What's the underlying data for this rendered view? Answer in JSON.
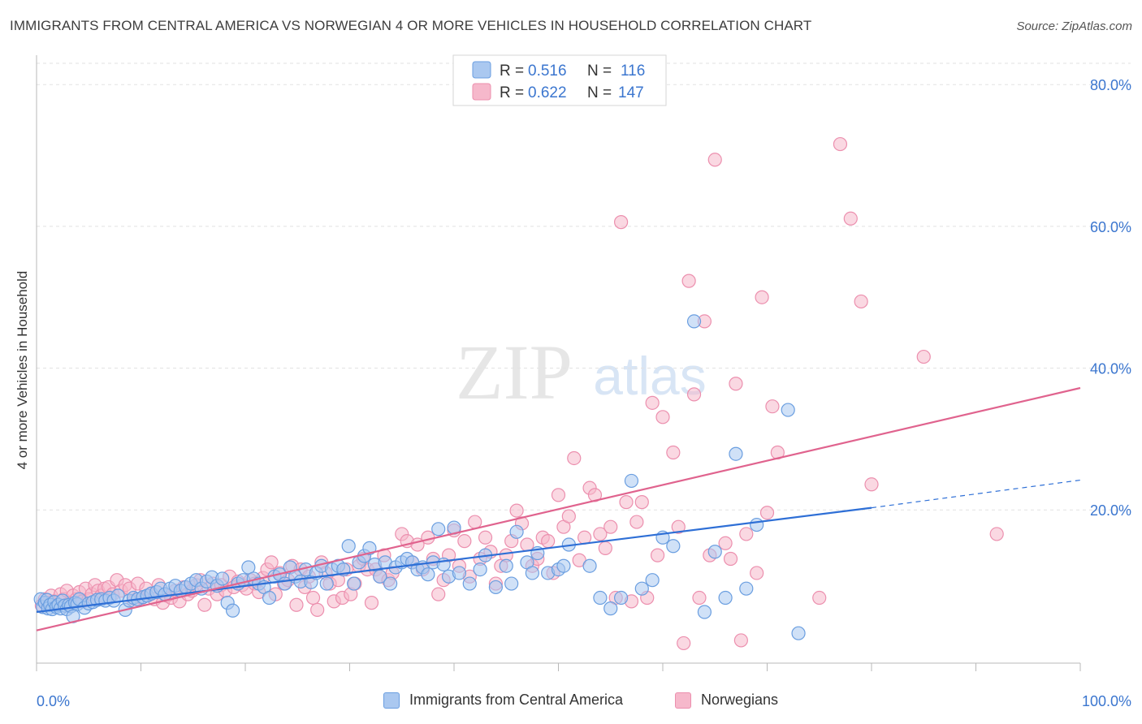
{
  "title": "IMMIGRANTS FROM CENTRAL AMERICA VS NORWEGIAN 4 OR MORE VEHICLES IN HOUSEHOLD CORRELATION CHART",
  "source": "Source: ZipAtlas.com",
  "watermark": {
    "zip": "ZIP",
    "atlas": "atlas"
  },
  "colors": {
    "blue_fill": "#aac8f0",
    "blue_stroke": "#6a9ee0",
    "blue_line": "#2e6fd6",
    "pink_fill": "#f6b8cb",
    "pink_stroke": "#ec8fae",
    "pink_line": "#e0638e",
    "tick_label": "#3b76cf",
    "grid": "#e2e2e2"
  },
  "stats_legend": [
    {
      "r_label": "R =",
      "r_value": "0.516",
      "n_label": "N =",
      "n_value": "116"
    },
    {
      "r_label": "R =",
      "r_value": "0.622",
      "n_label": "N =",
      "n_value": "147"
    }
  ],
  "chart_data": {
    "type": "scatter",
    "xlabel": "",
    "ylabel": "4 or more Vehicles in Household",
    "xlim": [
      0,
      100
    ],
    "ylim": [
      -1.5,
      83
    ],
    "x_tick_labels": [
      "0.0%",
      "100.0%"
    ],
    "y_ticks": [
      20,
      40,
      60,
      80
    ],
    "y_tick_labels": [
      "20.0%",
      "40.0%",
      "60.0%",
      "80.0%"
    ],
    "grid": "horizontal dashed",
    "legend_position": "bottom",
    "series": [
      {
        "name": "Immigrants from Central America",
        "color": "#aac8f0",
        "r": 0.516,
        "n": 116,
        "trend": {
          "x": [
            0,
            80
          ],
          "y": [
            5.6,
            20.3
          ],
          "dashed_extension": {
            "x": [
              80,
              100
            ],
            "y": [
              20.3,
              24.2
            ]
          }
        },
        "points": [
          [
            0.4,
            7.4
          ],
          [
            0.6,
            6.3
          ],
          [
            0.8,
            6.9
          ],
          [
            1.0,
            7.3
          ],
          [
            1.1,
            6.1
          ],
          [
            1.3,
            6.6
          ],
          [
            1.5,
            6.0
          ],
          [
            1.7,
            7.0
          ],
          [
            1.9,
            6.3
          ],
          [
            2.1,
            6.6
          ],
          [
            2.3,
            6.1
          ],
          [
            2.5,
            7.2
          ],
          [
            2.7,
            6.5
          ],
          [
            2.9,
            6.0
          ],
          [
            3.1,
            6.6
          ],
          [
            3.3,
            6.4
          ],
          [
            3.5,
            5.0
          ],
          [
            3.7,
            6.9
          ],
          [
            3.9,
            6.7
          ],
          [
            4.1,
            7.4
          ],
          [
            4.6,
            6.2
          ],
          [
            5.0,
            6.8
          ],
          [
            5.4,
            7.0
          ],
          [
            5.8,
            7.3
          ],
          [
            6.2,
            7.4
          ],
          [
            6.6,
            7.2
          ],
          [
            7.0,
            7.6
          ],
          [
            7.4,
            7.2
          ],
          [
            7.8,
            7.9
          ],
          [
            8.5,
            5.9
          ],
          [
            8.9,
            7.2
          ],
          [
            9.3,
            7.6
          ],
          [
            9.7,
            7.4
          ],
          [
            10.2,
            7.7
          ],
          [
            10.6,
            7.9
          ],
          [
            11.0,
            8.2
          ],
          [
            11.5,
            8.4
          ],
          [
            11.9,
            8.9
          ],
          [
            12.3,
            8.1
          ],
          [
            12.8,
            8.9
          ],
          [
            13.3,
            9.3
          ],
          [
            13.8,
            8.6
          ],
          [
            14.3,
            9.1
          ],
          [
            14.8,
            9.6
          ],
          [
            15.3,
            10.1
          ],
          [
            15.8,
            8.9
          ],
          [
            16.3,
            9.9
          ],
          [
            16.8,
            10.5
          ],
          [
            17.3,
            9.3
          ],
          [
            17.8,
            10.3
          ],
          [
            18.3,
            6.9
          ],
          [
            18.8,
            5.8
          ],
          [
            19.3,
            9.6
          ],
          [
            19.8,
            10.1
          ],
          [
            20.3,
            11.9
          ],
          [
            20.8,
            10.3
          ],
          [
            21.3,
            9.6
          ],
          [
            21.8,
            9.1
          ],
          [
            22.3,
            7.6
          ],
          [
            22.8,
            10.6
          ],
          [
            23.3,
            10.9
          ],
          [
            23.8,
            9.6
          ],
          [
            24.3,
            11.9
          ],
          [
            24.8,
            10.6
          ],
          [
            25.3,
            9.9
          ],
          [
            25.8,
            11.6
          ],
          [
            26.3,
            9.8
          ],
          [
            26.8,
            11.1
          ],
          [
            27.3,
            12.1
          ],
          [
            27.8,
            9.6
          ],
          [
            28.3,
            11.6
          ],
          [
            28.9,
            12.1
          ],
          [
            29.4,
            11.6
          ],
          [
            29.9,
            14.9
          ],
          [
            30.4,
            9.6
          ],
          [
            30.9,
            12.6
          ],
          [
            31.4,
            13.5
          ],
          [
            31.9,
            14.6
          ],
          [
            32.4,
            12.3
          ],
          [
            32.9,
            10.6
          ],
          [
            33.4,
            12.6
          ],
          [
            33.9,
            9.6
          ],
          [
            34.4,
            11.9
          ],
          [
            35.0,
            12.6
          ],
          [
            35.5,
            13.1
          ],
          [
            36.0,
            12.6
          ],
          [
            36.5,
            11.6
          ],
          [
            37.0,
            11.9
          ],
          [
            37.5,
            10.9
          ],
          [
            38.0,
            12.6
          ],
          [
            38.5,
            17.3
          ],
          [
            39.0,
            12.3
          ],
          [
            39.5,
            10.6
          ],
          [
            40.0,
            17.5
          ],
          [
            40.5,
            11.1
          ],
          [
            41.5,
            9.6
          ],
          [
            42.5,
            11.6
          ],
          [
            43.0,
            13.6
          ],
          [
            44.0,
            9.1
          ],
          [
            45.0,
            12.1
          ],
          [
            45.5,
            9.6
          ],
          [
            46.0,
            16.9
          ],
          [
            47.0,
            12.6
          ],
          [
            47.5,
            11.1
          ],
          [
            48.0,
            13.9
          ],
          [
            49.0,
            11.1
          ],
          [
            50.0,
            11.6
          ],
          [
            50.5,
            12.1
          ],
          [
            51.0,
            15.1
          ],
          [
            53.0,
            12.1
          ],
          [
            54.0,
            7.6
          ],
          [
            55.0,
            6.1
          ],
          [
            56.0,
            7.6
          ],
          [
            57.0,
            24.1
          ],
          [
            58.0,
            8.9
          ],
          [
            59.0,
            10.1
          ],
          [
            60.0,
            16.1
          ],
          [
            61.0,
            14.9
          ],
          [
            63.0,
            46.6
          ],
          [
            64.0,
            5.6
          ],
          [
            65.0,
            14.1
          ],
          [
            66.0,
            7.6
          ],
          [
            67.0,
            27.9
          ],
          [
            68.0,
            8.9
          ],
          [
            69.0,
            17.9
          ],
          [
            72.0,
            34.1
          ],
          [
            73.0,
            2.6
          ]
        ]
      },
      {
        "name": "Norwegians",
        "color": "#f6b8cb",
        "r": 0.622,
        "n": 147,
        "trend": {
          "x": [
            0,
            100
          ],
          "y": [
            3.0,
            37.2
          ]
        },
        "points": [
          [
            0.5,
            6.5
          ],
          [
            0.8,
            7.4
          ],
          [
            1.1,
            6.9
          ],
          [
            1.4,
            7.9
          ],
          [
            1.7,
            7.1
          ],
          [
            2.0,
            6.6
          ],
          [
            2.3,
            8.1
          ],
          [
            2.6,
            7.4
          ],
          [
            2.9,
            8.6
          ],
          [
            3.2,
            6.9
          ],
          [
            3.5,
            7.9
          ],
          [
            3.8,
            7.4
          ],
          [
            4.1,
            8.4
          ],
          [
            4.4,
            7.1
          ],
          [
            4.7,
            8.9
          ],
          [
            5.0,
            7.4
          ],
          [
            5.3,
            8.1
          ],
          [
            5.6,
            9.4
          ],
          [
            5.9,
            8.6
          ],
          [
            6.2,
            7.9
          ],
          [
            6.5,
            8.9
          ],
          [
            6.9,
            9.1
          ],
          [
            7.3,
            8.1
          ],
          [
            7.7,
            10.1
          ],
          [
            8.1,
            8.6
          ],
          [
            8.5,
            9.4
          ],
          [
            8.9,
            8.9
          ],
          [
            9.3,
            7.1
          ],
          [
            9.7,
            9.6
          ],
          [
            10.1,
            7.6
          ],
          [
            10.5,
            8.9
          ],
          [
            10.9,
            8.1
          ],
          [
            11.3,
            7.4
          ],
          [
            11.7,
            9.4
          ],
          [
            12.1,
            6.9
          ],
          [
            12.5,
            7.9
          ],
          [
            12.9,
            7.6
          ],
          [
            13.3,
            8.6
          ],
          [
            13.7,
            7.1
          ],
          [
            14.1,
            9.1
          ],
          [
            14.5,
            8.1
          ],
          [
            14.9,
            8.6
          ],
          [
            15.3,
            9.4
          ],
          [
            15.7,
            10.1
          ],
          [
            16.1,
            6.6
          ],
          [
            16.5,
            8.9
          ],
          [
            16.9,
            9.6
          ],
          [
            17.3,
            8.1
          ],
          [
            17.7,
            9.4
          ],
          [
            18.1,
            8.6
          ],
          [
            18.5,
            10.6
          ],
          [
            18.9,
            9.1
          ],
          [
            19.3,
            9.9
          ],
          [
            19.7,
            9.4
          ],
          [
            20.1,
            8.9
          ],
          [
            20.5,
            10.1
          ],
          [
            20.9,
            9.6
          ],
          [
            21.3,
            8.4
          ],
          [
            21.7,
            10.4
          ],
          [
            22.1,
            11.6
          ],
          [
            22.5,
            12.6
          ],
          [
            22.9,
            8.1
          ],
          [
            23.3,
            11.1
          ],
          [
            23.7,
            9.6
          ],
          [
            24.1,
            10.1
          ],
          [
            24.5,
            12.1
          ],
          [
            24.9,
            6.6
          ],
          [
            25.3,
            11.6
          ],
          [
            25.7,
            9.1
          ],
          [
            26.1,
            10.6
          ],
          [
            26.5,
            7.6
          ],
          [
            26.9,
            5.9
          ],
          [
            27.3,
            12.6
          ],
          [
            27.7,
            11.1
          ],
          [
            28.1,
            9.6
          ],
          [
            28.5,
            7.1
          ],
          [
            28.9,
            10.1
          ],
          [
            29.3,
            7.6
          ],
          [
            29.7,
            11.6
          ],
          [
            30.1,
            8.1
          ],
          [
            30.5,
            9.6
          ],
          [
            30.9,
            12.1
          ],
          [
            31.3,
            13.1
          ],
          [
            31.7,
            11.6
          ],
          [
            32.1,
            6.9
          ],
          [
            32.5,
            11.6
          ],
          [
            32.9,
            10.6
          ],
          [
            33.3,
            13.6
          ],
          [
            33.7,
            10.1
          ],
          [
            34.1,
            11.1
          ],
          [
            35.0,
            16.6
          ],
          [
            35.5,
            15.6
          ],
          [
            36.0,
            12.6
          ],
          [
            36.5,
            15.1
          ],
          [
            37.0,
            11.6
          ],
          [
            37.5,
            16.1
          ],
          [
            38.0,
            13.1
          ],
          [
            38.5,
            8.1
          ],
          [
            39.0,
            10.1
          ],
          [
            39.5,
            13.6
          ],
          [
            40.0,
            17.1
          ],
          [
            40.5,
            12.1
          ],
          [
            41.0,
            15.6
          ],
          [
            41.5,
            10.6
          ],
          [
            42.0,
            18.3
          ],
          [
            42.5,
            13.1
          ],
          [
            43.0,
            16.1
          ],
          [
            43.5,
            14.1
          ],
          [
            44.0,
            9.6
          ],
          [
            44.5,
            12.1
          ],
          [
            45.0,
            13.6
          ],
          [
            45.5,
            15.6
          ],
          [
            46.0,
            19.9
          ],
          [
            46.5,
            18.1
          ],
          [
            47.0,
            15.1
          ],
          [
            47.5,
            12.1
          ],
          [
            48.0,
            13.1
          ],
          [
            48.5,
            16.1
          ],
          [
            49.0,
            15.6
          ],
          [
            49.5,
            11.1
          ],
          [
            50.0,
            22.1
          ],
          [
            50.5,
            17.6
          ],
          [
            51.0,
            19.1
          ],
          [
            51.5,
            27.3
          ],
          [
            52.0,
            12.9
          ],
          [
            52.5,
            16.1
          ],
          [
            53.0,
            23.1
          ],
          [
            53.5,
            22.1
          ],
          [
            54.0,
            16.6
          ],
          [
            54.5,
            14.6
          ],
          [
            55.0,
            17.6
          ],
          [
            55.5,
            7.6
          ],
          [
            56.0,
            60.6
          ],
          [
            56.5,
            21.1
          ],
          [
            57.0,
            7.1
          ],
          [
            57.5,
            18.3
          ],
          [
            58.0,
            21.1
          ],
          [
            58.5,
            7.6
          ],
          [
            59.0,
            35.1
          ],
          [
            59.5,
            13.6
          ],
          [
            60.0,
            33.1
          ],
          [
            61.0,
            28.1
          ],
          [
            61.5,
            17.6
          ],
          [
            62.0,
            1.2
          ],
          [
            62.5,
            52.3
          ],
          [
            63.0,
            36.3
          ],
          [
            63.5,
            7.6
          ],
          [
            64.0,
            46.6
          ],
          [
            64.5,
            13.6
          ],
          [
            65.0,
            69.4
          ],
          [
            66.0,
            15.3
          ],
          [
            66.5,
            13.1
          ],
          [
            67.0,
            37.8
          ],
          [
            67.5,
            1.6
          ],
          [
            68.0,
            16.6
          ],
          [
            69.0,
            11.1
          ],
          [
            69.5,
            50.0
          ],
          [
            70.0,
            19.6
          ],
          [
            70.5,
            34.6
          ],
          [
            71.0,
            28.1
          ],
          [
            75.0,
            7.6
          ],
          [
            77.0,
            71.6
          ],
          [
            78.0,
            61.1
          ],
          [
            79.0,
            49.4
          ],
          [
            80.0,
            23.6
          ],
          [
            85.0,
            41.6
          ],
          [
            92.0,
            16.6
          ]
        ]
      }
    ]
  }
}
